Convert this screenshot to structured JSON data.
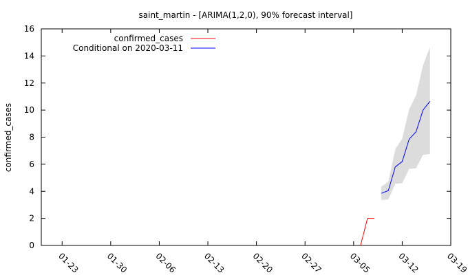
{
  "chart_data": {
    "type": "line",
    "title": "saint_martin -  [ARIMA(1,2,0), 90% forecast interval]",
    "xlabel": "",
    "ylabel": "confirmed_cases",
    "x_tick_labels": [
      "01-23",
      "01-30",
      "02-06",
      "02-13",
      "02-20",
      "02-27",
      "03-05",
      "03-12",
      "03-19"
    ],
    "x_tick_dates": [
      "2020-01-23",
      "2020-01-30",
      "2020-02-06",
      "2020-02-13",
      "2020-02-20",
      "2020-02-27",
      "2020-03-05",
      "2020-03-12",
      "2020-03-19"
    ],
    "xlim": [
      "2020-01-20",
      "2020-03-19"
    ],
    "ylim": [
      0,
      16
    ],
    "y_ticks": [
      0,
      2,
      4,
      6,
      8,
      10,
      12,
      14,
      16
    ],
    "grid": false,
    "legend_position": "top-left",
    "series": [
      {
        "name": "confirmed_cases",
        "color": "#ff0000",
        "points": [
          {
            "x": "2020-03-06",
            "y": 0
          },
          {
            "x": "2020-03-07",
            "y": 2
          },
          {
            "x": "2020-03-08",
            "y": 2
          }
        ]
      },
      {
        "name": "Conditional on 2020-03-11",
        "color": "#0000ff",
        "points": [
          {
            "x": "2020-03-09",
            "y": 3.85
          },
          {
            "x": "2020-03-10",
            "y": 4.05
          },
          {
            "x": "2020-03-11",
            "y": 5.8
          },
          {
            "x": "2020-03-12",
            "y": 6.2
          },
          {
            "x": "2020-03-13",
            "y": 7.85
          },
          {
            "x": "2020-03-14",
            "y": 8.4
          },
          {
            "x": "2020-03-15",
            "y": 10.0
          },
          {
            "x": "2020-03-16",
            "y": 10.65
          }
        ]
      }
    ],
    "forecast_interval": {
      "color": "#dcdcdc",
      "x": [
        "2020-03-09",
        "2020-03-10",
        "2020-03-11",
        "2020-03-12",
        "2020-03-13",
        "2020-03-14",
        "2020-03-15",
        "2020-03-16"
      ],
      "lower": [
        3.35,
        3.4,
        4.55,
        4.6,
        5.65,
        5.7,
        6.7,
        6.75
      ],
      "upper": [
        4.35,
        4.7,
        7.1,
        7.9,
        10.05,
        11.1,
        13.3,
        14.65
      ]
    }
  }
}
